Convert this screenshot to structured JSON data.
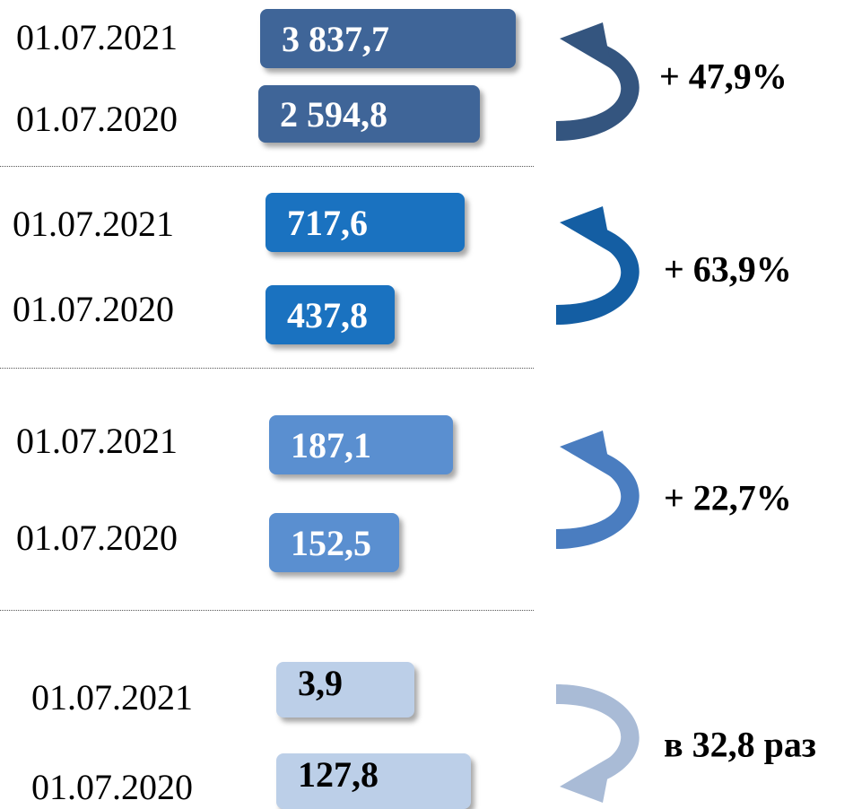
{
  "groups": [
    {
      "rows": [
        {
          "date": "01.07.2021",
          "value": "3 837,7"
        },
        {
          "date": "01.07.2020",
          "value": "2 594,8"
        }
      ],
      "change": "+ 47,9%"
    },
    {
      "rows": [
        {
          "date": "01.07.2021",
          "value": "717,6"
        },
        {
          "date": "01.07.2020",
          "value": "437,8"
        }
      ],
      "change": "+ 63,9%"
    },
    {
      "rows": [
        {
          "date": "01.07.2021",
          "value": "187,1"
        },
        {
          "date": "01.07.2020",
          "value": "152,5"
        }
      ],
      "change": "+ 22,7%"
    },
    {
      "rows": [
        {
          "date": "01.07.2021",
          "value": "3,9"
        },
        {
          "date": "01.07.2020",
          "value": "127,8"
        }
      ],
      "change": "в 32,8 раз"
    }
  ]
}
